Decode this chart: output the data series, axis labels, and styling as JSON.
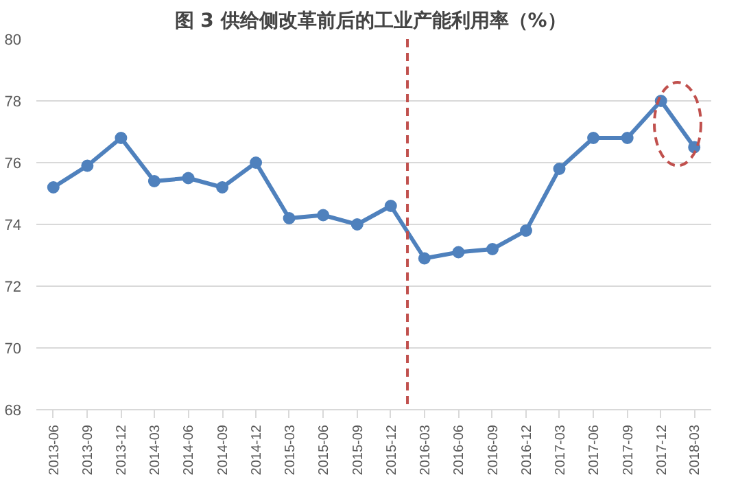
{
  "chart_data": {
    "type": "line",
    "title": "图 3  供给侧改革前后的工业产能利用率（%）",
    "x": [
      "2013-06",
      "2013-09",
      "2013-12",
      "2014-03",
      "2014-06",
      "2014-09",
      "2014-12",
      "2015-03",
      "2015-06",
      "2015-09",
      "2015-12",
      "2016-03",
      "2016-06",
      "2016-09",
      "2016-12",
      "2017-03",
      "2017-06",
      "2017-09",
      "2017-12",
      "2018-03"
    ],
    "series": [
      {
        "color": "#4f81bd",
        "values": [
          75.2,
          75.9,
          76.8,
          75.4,
          75.5,
          75.2,
          76.0,
          74.2,
          74.3,
          74.0,
          74.6,
          72.9,
          73.1,
          73.2,
          73.8,
          75.8,
          76.8,
          76.8,
          78.0,
          76.5
        ]
      }
    ],
    "xlim": [
      "2013-04-16",
      "2018-04-16"
    ],
    "xticks": [
      "2013-06",
      "2013-09",
      "2013-12",
      "2014-03",
      "2014-06",
      "2014-09",
      "2014-12",
      "2015-03",
      "2015-06",
      "2015-09",
      "2015-12",
      "2016-03",
      "2016-06",
      "2016-09",
      "2016-12",
      "2017-03",
      "2017-06",
      "2017-09",
      "2017-12",
      "2018-03"
    ],
    "ylim": [
      68,
      80
    ],
    "yticks": [
      68,
      70,
      72,
      74,
      76,
      78,
      80
    ],
    "grid": "y",
    "marker": "circle",
    "line_style": "solid",
    "ref_lines": [
      {
        "axis": "x",
        "value": "2016-01-15",
        "color": "#c0504d",
        "line_style": "dashed"
      }
    ]
  }
}
